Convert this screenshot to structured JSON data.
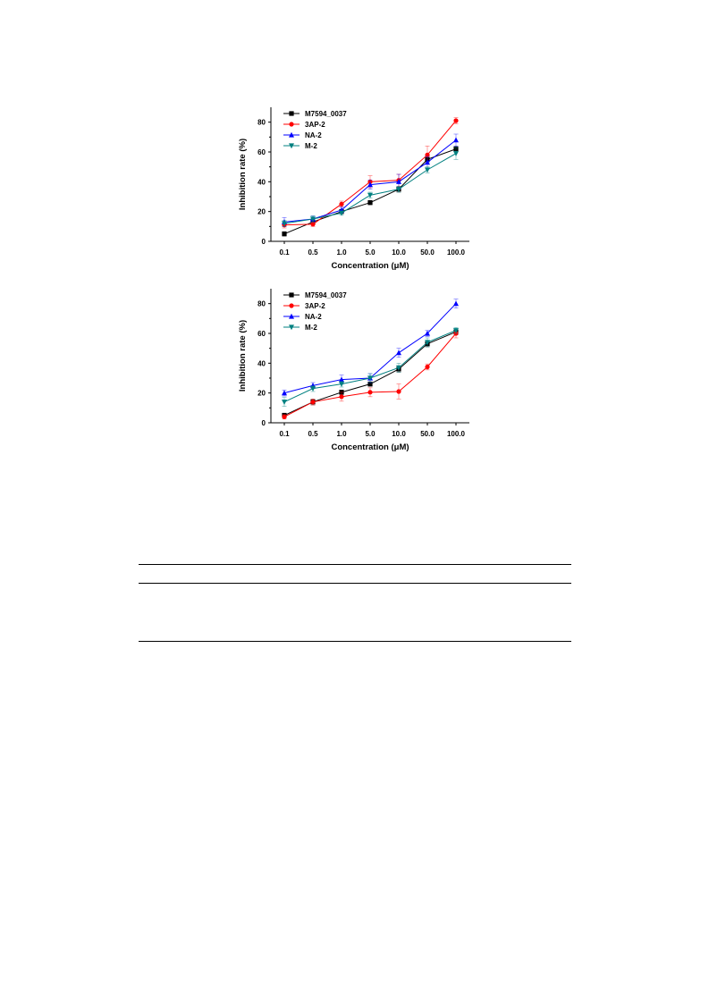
{
  "chart_data": [
    {
      "type": "line",
      "title": "",
      "xlabel": "Concentration (μM)",
      "ylabel": "Inhibition rate (%)",
      "categories": [
        "0.1",
        "0.5",
        "1.0",
        "5.0",
        "10.0",
        "50.0",
        "100.0"
      ],
      "ylim": [
        0,
        90
      ],
      "yticks": [
        0,
        20,
        40,
        60,
        80
      ],
      "legend_position": "top-left",
      "series": [
        {
          "name": "M7594_0037",
          "color": "#000000",
          "marker": "square",
          "values": [
            5,
            13,
            20,
            26,
            35,
            55,
            62
          ],
          "errors": [
            1.5,
            2,
            1.5,
            1.5,
            2,
            2,
            2
          ]
        },
        {
          "name": "3AP-2",
          "color": "#ff0000",
          "marker": "circle",
          "values": [
            11,
            11.5,
            25,
            40,
            41,
            58,
            81
          ],
          "errors": [
            2,
            1.5,
            2,
            4,
            4,
            6,
            2
          ]
        },
        {
          "name": "NA-2",
          "color": "#0000ff",
          "marker": "triangle-up",
          "values": [
            13,
            15,
            21,
            38,
            40,
            53,
            68
          ],
          "errors": [
            3,
            2,
            2,
            3,
            5,
            4,
            4
          ]
        },
        {
          "name": "M-2",
          "color": "#008080",
          "marker": "triangle-down",
          "values": [
            12,
            15,
            19,
            31,
            35,
            48,
            59
          ],
          "errors": [
            2,
            2,
            1.5,
            2,
            2,
            2,
            4
          ]
        }
      ]
    },
    {
      "type": "line",
      "title": "",
      "xlabel": "Concentration (μM)",
      "ylabel": "Inhibition rate (%)",
      "categories": [
        "0.1",
        "0.5",
        "1.0",
        "5.0",
        "10.0",
        "50.0",
        "100.0"
      ],
      "ylim": [
        0,
        90
      ],
      "yticks": [
        0,
        20,
        40,
        60,
        80
      ],
      "legend_position": "top-left",
      "series": [
        {
          "name": "M7594_0037",
          "color": "#000000",
          "marker": "square",
          "values": [
            5,
            14,
            20.5,
            26,
            36,
            53,
            61
          ],
          "errors": [
            1.5,
            2,
            1.5,
            1.5,
            2,
            2,
            2
          ]
        },
        {
          "name": "3AP-2",
          "color": "#ff0000",
          "marker": "circle",
          "values": [
            4,
            14,
            17.5,
            20.5,
            21,
            37.5,
            60
          ],
          "errors": [
            1.5,
            2,
            3,
            3,
            5,
            2,
            3
          ]
        },
        {
          "name": "NA-2",
          "color": "#0000ff",
          "marker": "triangle-up",
          "values": [
            20,
            25,
            29,
            30,
            47,
            60,
            80
          ],
          "errors": [
            2,
            2,
            3,
            3,
            3,
            2,
            3
          ]
        },
        {
          "name": "M-2",
          "color": "#008080",
          "marker": "triangle-down",
          "values": [
            14,
            23,
            26,
            30,
            37,
            54,
            62
          ],
          "errors": [
            3,
            2,
            2,
            3,
            3,
            3,
            2
          ]
        }
      ]
    }
  ]
}
